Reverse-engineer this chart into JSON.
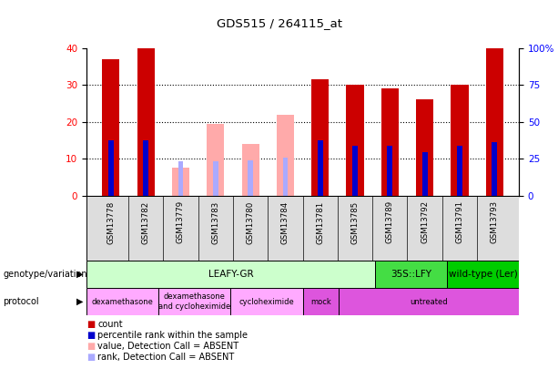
{
  "title": "GDS515 / 264115_at",
  "samples": [
    "GSM13778",
    "GSM13782",
    "GSM13779",
    "GSM13783",
    "GSM13780",
    "GSM13784",
    "GSM13781",
    "GSM13785",
    "GSM13789",
    "GSM13792",
    "GSM13791",
    "GSM13793"
  ],
  "count_values": [
    37.0,
    40.0,
    0,
    0,
    0,
    0,
    31.5,
    30.0,
    29.0,
    26.0,
    30.0,
    40.0
  ],
  "count_absent": [
    false,
    false,
    true,
    true,
    true,
    true,
    false,
    false,
    false,
    false,
    false,
    false
  ],
  "absent_count": [
    0,
    0,
    7.5,
    19.5,
    14.0,
    22.0,
    0,
    0,
    0,
    0,
    0,
    0
  ],
  "absent_rank_pct": [
    0,
    0,
    23.5,
    23.5,
    24.0,
    26.0,
    0,
    0,
    0,
    0,
    0,
    0
  ],
  "rank_pct": [
    37.5,
    37.5,
    0,
    0,
    0,
    0,
    37.5,
    33.5,
    33.5,
    29.5,
    33.5,
    36.0
  ],
  "ylim": [
    0,
    40
  ],
  "y2lim": [
    0,
    100
  ],
  "yticks": [
    0,
    10,
    20,
    30,
    40
  ],
  "y2ticks": [
    0,
    25,
    50,
    75,
    100
  ],
  "y2ticklabels": [
    "0",
    "25",
    "50",
    "75",
    "100%"
  ],
  "bar_color_present": "#cc0000",
  "bar_color_absent": "#ffaaaa",
  "rank_color_present": "#0000cc",
  "rank_color_absent": "#aaaaff",
  "genotype_groups": [
    {
      "label": "LEAFY-GR",
      "start": 0,
      "end": 8,
      "color": "#ccffcc"
    },
    {
      "label": "35S::LFY",
      "start": 8,
      "end": 10,
      "color": "#44dd44"
    },
    {
      "label": "wild-type (Ler)",
      "start": 10,
      "end": 12,
      "color": "#00cc00"
    }
  ],
  "protocol_groups": [
    {
      "label": "dexamethasone",
      "start": 0,
      "end": 2,
      "color": "#ffaaff"
    },
    {
      "label": "dexamethasone\nand cycloheximide",
      "start": 2,
      "end": 4,
      "color": "#ffaaff"
    },
    {
      "label": "cycloheximide",
      "start": 4,
      "end": 6,
      "color": "#ffaaff"
    },
    {
      "label": "mock",
      "start": 6,
      "end": 7,
      "color": "#dd55dd"
    },
    {
      "label": "untreated",
      "start": 7,
      "end": 12,
      "color": "#dd55dd"
    }
  ],
  "legend_items": [
    {
      "label": "count",
      "color": "#cc0000"
    },
    {
      "label": "percentile rank within the sample",
      "color": "#0000cc"
    },
    {
      "label": "value, Detection Call = ABSENT",
      "color": "#ffaaaa"
    },
    {
      "label": "rank, Detection Call = ABSENT",
      "color": "#aaaaff"
    }
  ],
  "bar_width": 0.5,
  "rank_bar_width": 0.15
}
